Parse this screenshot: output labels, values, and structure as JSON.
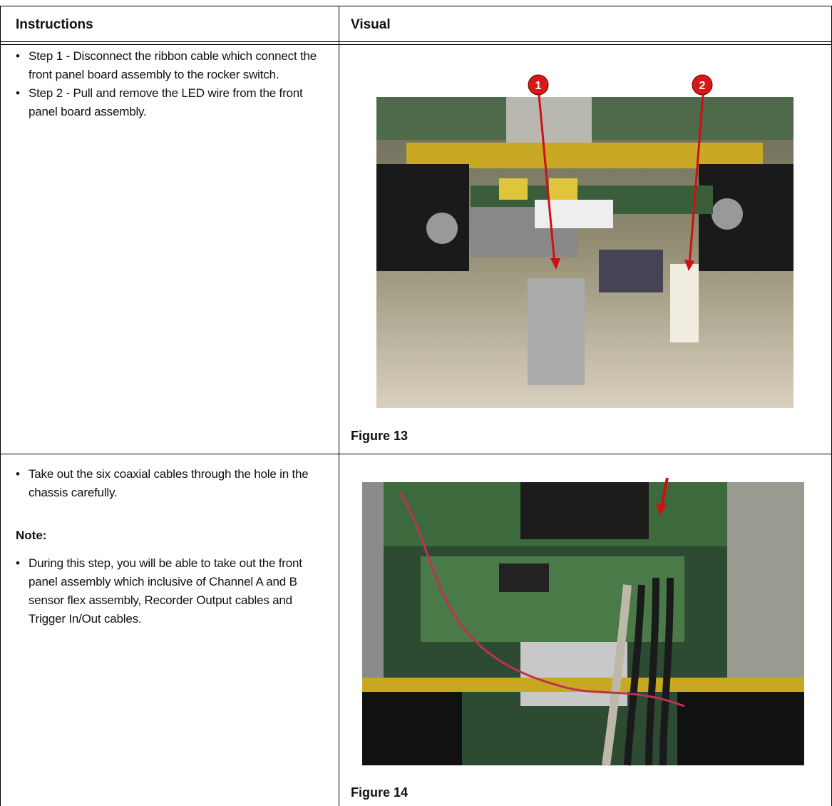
{
  "table": {
    "header": [
      "Instructions",
      "Visual"
    ],
    "rows": [
      {
        "instructions": [
          "Step 1 - Disconnect the ribbon cable which connect the front panel board assembly to the rocker switch.",
          "Step 2 - Pull and remove the LED wire from the front panel board assembly."
        ],
        "callouts": [
          "1",
          "2"
        ],
        "caption": "Figure 13"
      },
      {
        "instructions": [
          "Take out the six coaxial cables through the hole in the chassis carefully."
        ],
        "note_label": "Note:",
        "note": [
          "During this step, you will be able to take out the front panel assembly which inclusive of Channel A and B sensor flex assembly, Recorder Output cables and Trigger In/Out cables."
        ],
        "caption": "Figure 14"
      }
    ]
  }
}
